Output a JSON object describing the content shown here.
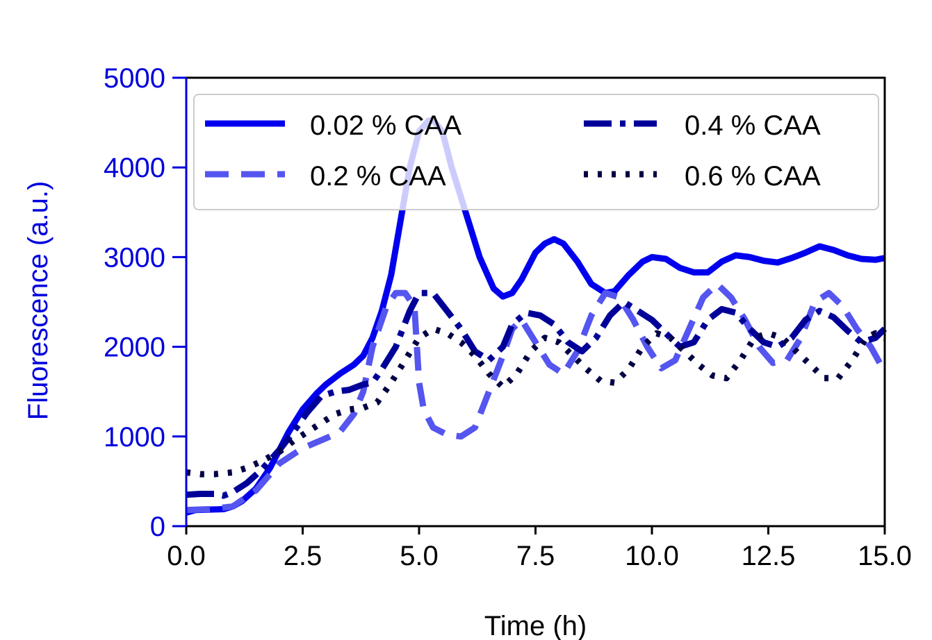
{
  "chart_data": {
    "type": "line",
    "title": "",
    "xlabel": "Time (h)",
    "ylabel": "Fluorescence (a.u.)",
    "xlim": [
      0,
      15
    ],
    "ylim": [
      0,
      5000
    ],
    "xticks": [
      "0.0",
      "2.5",
      "5.0",
      "7.5",
      "10.0",
      "12.5",
      "15.0"
    ],
    "yticks": [
      "0",
      "1000",
      "2000",
      "3000",
      "4000",
      "5000"
    ],
    "xtick_values": [
      0,
      2.5,
      5,
      7.5,
      10,
      12.5,
      15
    ],
    "ytick_values": [
      0,
      1000,
      2000,
      3000,
      4000,
      5000
    ],
    "ylabel_color": "#0000dd",
    "legend_position": "top",
    "series": [
      {
        "name": "0.02 % CAA",
        "color": "#0000ee",
        "style": "solid",
        "points": [
          [
            0,
            150
          ],
          [
            0.2,
            180
          ],
          [
            0.5,
            185
          ],
          [
            0.8,
            190
          ],
          [
            1.0,
            220
          ],
          [
            1.2,
            280
          ],
          [
            1.5,
            420
          ],
          [
            1.8,
            650
          ],
          [
            2.0,
            850
          ],
          [
            2.2,
            1050
          ],
          [
            2.5,
            1300
          ],
          [
            2.8,
            1480
          ],
          [
            3.0,
            1580
          ],
          [
            3.3,
            1700
          ],
          [
            3.6,
            1800
          ],
          [
            3.8,
            1900
          ],
          [
            4.0,
            2100
          ],
          [
            4.2,
            2400
          ],
          [
            4.4,
            2800
          ],
          [
            4.6,
            3400
          ],
          [
            4.8,
            4000
          ],
          [
            5.0,
            4400
          ],
          [
            5.2,
            4520
          ],
          [
            5.3,
            4530
          ],
          [
            5.5,
            4400
          ],
          [
            5.7,
            4000
          ],
          [
            6.0,
            3500
          ],
          [
            6.3,
            3000
          ],
          [
            6.6,
            2650
          ],
          [
            6.8,
            2560
          ],
          [
            7.0,
            2600
          ],
          [
            7.2,
            2750
          ],
          [
            7.5,
            3050
          ],
          [
            7.7,
            3150
          ],
          [
            7.9,
            3200
          ],
          [
            8.1,
            3150
          ],
          [
            8.4,
            2950
          ],
          [
            8.7,
            2700
          ],
          [
            9.0,
            2600
          ],
          [
            9.2,
            2620
          ],
          [
            9.5,
            2800
          ],
          [
            9.8,
            2950
          ],
          [
            10.0,
            3000
          ],
          [
            10.3,
            2980
          ],
          [
            10.6,
            2880
          ],
          [
            10.9,
            2830
          ],
          [
            11.2,
            2830
          ],
          [
            11.5,
            2950
          ],
          [
            11.8,
            3020
          ],
          [
            12.1,
            3000
          ],
          [
            12.4,
            2960
          ],
          [
            12.7,
            2940
          ],
          [
            13.0,
            2990
          ],
          [
            13.3,
            3050
          ],
          [
            13.6,
            3120
          ],
          [
            13.9,
            3080
          ],
          [
            14.2,
            3020
          ],
          [
            14.5,
            2980
          ],
          [
            14.8,
            2970
          ],
          [
            15.0,
            2990
          ]
        ]
      },
      {
        "name": "0.2 % CAA",
        "color": "#5555f0",
        "style": "dashed",
        "points": [
          [
            0,
            180
          ],
          [
            0.5,
            190
          ],
          [
            1.0,
            220
          ],
          [
            1.5,
            400
          ],
          [
            2.0,
            700
          ],
          [
            2.5,
            870
          ],
          [
            3.0,
            980
          ],
          [
            3.3,
            1050
          ],
          [
            3.6,
            1250
          ],
          [
            3.8,
            1500
          ],
          [
            4.0,
            2000
          ],
          [
            4.3,
            2450
          ],
          [
            4.5,
            2600
          ],
          [
            4.7,
            2600
          ],
          [
            4.9,
            2450
          ],
          [
            5.0,
            1600
          ],
          [
            5.1,
            1300
          ],
          [
            5.3,
            1100
          ],
          [
            5.6,
            1020
          ],
          [
            5.9,
            1000
          ],
          [
            6.2,
            1100
          ],
          [
            6.5,
            1500
          ],
          [
            6.8,
            1900
          ],
          [
            7.0,
            2200
          ],
          [
            7.2,
            2300
          ],
          [
            7.5,
            2050
          ],
          [
            7.8,
            1800
          ],
          [
            8.1,
            1700
          ],
          [
            8.4,
            1950
          ],
          [
            8.7,
            2350
          ],
          [
            9.0,
            2600
          ],
          [
            9.3,
            2550
          ],
          [
            9.6,
            2300
          ],
          [
            9.9,
            2000
          ],
          [
            10.2,
            1760
          ],
          [
            10.5,
            1850
          ],
          [
            10.8,
            2200
          ],
          [
            11.1,
            2550
          ],
          [
            11.4,
            2700
          ],
          [
            11.7,
            2550
          ],
          [
            12.0,
            2300
          ],
          [
            12.3,
            2000
          ],
          [
            12.6,
            1820
          ],
          [
            12.9,
            1850
          ],
          [
            13.2,
            2100
          ],
          [
            13.5,
            2500
          ],
          [
            13.8,
            2600
          ],
          [
            14.1,
            2450
          ],
          [
            14.4,
            2200
          ],
          [
            14.7,
            2000
          ],
          [
            15.0,
            1720
          ]
        ]
      },
      {
        "name": "0.4 % CAA",
        "color": "#000099",
        "style": "dashdot",
        "points": [
          [
            0,
            350
          ],
          [
            0.3,
            360
          ],
          [
            0.6,
            360
          ],
          [
            0.8,
            340
          ],
          [
            1.0,
            380
          ],
          [
            1.3,
            480
          ],
          [
            1.6,
            620
          ],
          [
            2.0,
            850
          ],
          [
            2.3,
            1050
          ],
          [
            2.6,
            1270
          ],
          [
            2.9,
            1450
          ],
          [
            3.2,
            1500
          ],
          [
            3.5,
            1520
          ],
          [
            3.8,
            1580
          ],
          [
            4.0,
            1600
          ],
          [
            4.2,
            1750
          ],
          [
            4.5,
            2000
          ],
          [
            4.8,
            2400
          ],
          [
            5.0,
            2600
          ],
          [
            5.3,
            2600
          ],
          [
            5.6,
            2400
          ],
          [
            5.9,
            2200
          ],
          [
            6.2,
            1950
          ],
          [
            6.5,
            1850
          ],
          [
            6.8,
            2000
          ],
          [
            7.0,
            2250
          ],
          [
            7.3,
            2380
          ],
          [
            7.6,
            2350
          ],
          [
            7.9,
            2250
          ],
          [
            8.2,
            2050
          ],
          [
            8.5,
            1950
          ],
          [
            8.8,
            2100
          ],
          [
            9.1,
            2350
          ],
          [
            9.4,
            2500
          ],
          [
            9.7,
            2400
          ],
          [
            10.0,
            2300
          ],
          [
            10.3,
            2150
          ],
          [
            10.6,
            2000
          ],
          [
            10.9,
            2050
          ],
          [
            11.2,
            2300
          ],
          [
            11.5,
            2420
          ],
          [
            11.8,
            2380
          ],
          [
            12.1,
            2200
          ],
          [
            12.4,
            2050
          ],
          [
            12.7,
            2000
          ],
          [
            13.0,
            2100
          ],
          [
            13.3,
            2300
          ],
          [
            13.6,
            2400
          ],
          [
            13.9,
            2330
          ],
          [
            14.2,
            2180
          ],
          [
            14.5,
            2050
          ],
          [
            14.8,
            2100
          ],
          [
            15.0,
            2200
          ]
        ]
      },
      {
        "name": "0.6 % CAA",
        "color": "#000044",
        "style": "dotted",
        "points": [
          [
            0,
            600
          ],
          [
            0.3,
            580
          ],
          [
            0.6,
            580
          ],
          [
            1.0,
            600
          ],
          [
            1.3,
            650
          ],
          [
            1.6,
            720
          ],
          [
            2.0,
            830
          ],
          [
            2.3,
            950
          ],
          [
            2.6,
            1050
          ],
          [
            2.9,
            1150
          ],
          [
            3.2,
            1250
          ],
          [
            3.5,
            1300
          ],
          [
            3.8,
            1320
          ],
          [
            4.1,
            1380
          ],
          [
            4.4,
            1600
          ],
          [
            4.7,
            1850
          ],
          [
            5.0,
            2100
          ],
          [
            5.3,
            2200
          ],
          [
            5.6,
            2150
          ],
          [
            5.9,
            2050
          ],
          [
            6.2,
            1900
          ],
          [
            6.5,
            1700
          ],
          [
            6.8,
            1550
          ],
          [
            7.1,
            1700
          ],
          [
            7.4,
            1950
          ],
          [
            7.7,
            2100
          ],
          [
            8.0,
            2050
          ],
          [
            8.3,
            1900
          ],
          [
            8.6,
            1750
          ],
          [
            8.9,
            1620
          ],
          [
            9.2,
            1600
          ],
          [
            9.5,
            1750
          ],
          [
            9.8,
            2000
          ],
          [
            10.1,
            2150
          ],
          [
            10.4,
            2100
          ],
          [
            10.7,
            1950
          ],
          [
            11.0,
            1800
          ],
          [
            11.3,
            1680
          ],
          [
            11.6,
            1650
          ],
          [
            11.9,
            1850
          ],
          [
            12.2,
            2100
          ],
          [
            12.5,
            2150
          ],
          [
            12.8,
            2100
          ],
          [
            13.1,
            1950
          ],
          [
            13.4,
            1800
          ],
          [
            13.7,
            1650
          ],
          [
            14.0,
            1650
          ],
          [
            14.3,
            1850
          ],
          [
            14.6,
            2100
          ],
          [
            14.8,
            2150
          ],
          [
            15.0,
            2100
          ]
        ]
      }
    ]
  }
}
